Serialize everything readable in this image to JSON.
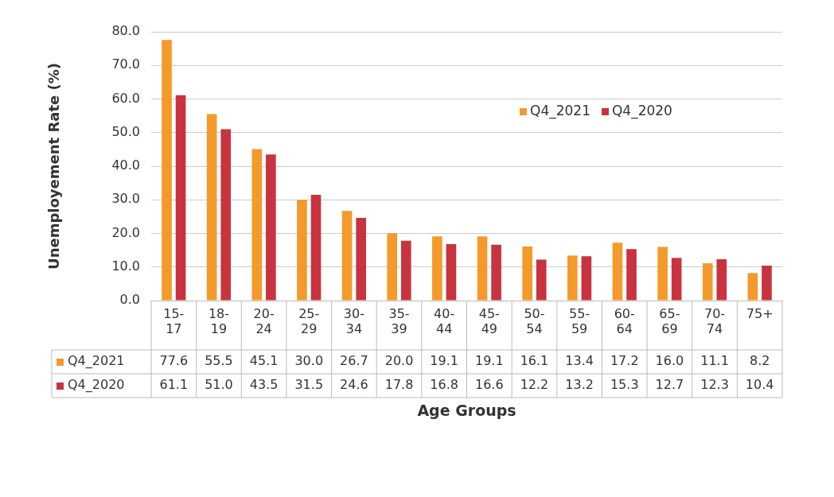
{
  "chart_data": {
    "type": "bar",
    "xlabel": "Age Groups",
    "ylabel": "Unemployement Rate (%)",
    "categories": [
      "15-17",
      "18-19",
      "20-24",
      "25-29",
      "30-34",
      "35-39",
      "40-44",
      "45-49",
      "50-54",
      "55-59",
      "60-64",
      "65-69",
      "70-74",
      "75+"
    ],
    "series": [
      {
        "name": "Q4_2021",
        "color": "#f39a2b",
        "values": [
          77.6,
          55.5,
          45.1,
          30.0,
          26.7,
          20.0,
          19.1,
          19.1,
          16.1,
          13.4,
          17.2,
          16.0,
          11.1,
          8.2
        ],
        "value_labels": [
          "77.6",
          "55.5",
          "45.1",
          "30.0",
          "26.7",
          "20.0",
          "19.1",
          "19.1",
          "16.1",
          "13.4",
          "17.2",
          "16.0",
          "11.1",
          "8.2"
        ]
      },
      {
        "name": "Q4_2020",
        "color": "#c8333f",
        "values": [
          61.1,
          51.0,
          43.5,
          31.5,
          24.6,
          17.8,
          16.8,
          16.6,
          12.2,
          13.2,
          15.3,
          12.7,
          12.3,
          10.4
        ],
        "value_labels": [
          "61.1",
          "51.0",
          "43.5",
          "31.5",
          "24.6",
          "17.8",
          "16.8",
          "16.6",
          "12.2",
          "13.2",
          "15.3",
          "12.7",
          "12.3",
          "10.4"
        ]
      }
    ],
    "ylim": [
      0,
      80
    ],
    "yticks": [
      {
        "value": 0,
        "label": "0.0"
      },
      {
        "value": 10,
        "label": "10.0"
      },
      {
        "value": 20,
        "label": "20.0"
      },
      {
        "value": 30,
        "label": "30.0"
      },
      {
        "value": 40,
        "label": "40.0"
      },
      {
        "value": 50,
        "label": "50.0"
      },
      {
        "value": 60,
        "label": "60.0"
      },
      {
        "value": 70,
        "label": "70.0"
      },
      {
        "value": 80,
        "label": "80.0"
      }
    ],
    "grid": "y",
    "legend": "right"
  }
}
